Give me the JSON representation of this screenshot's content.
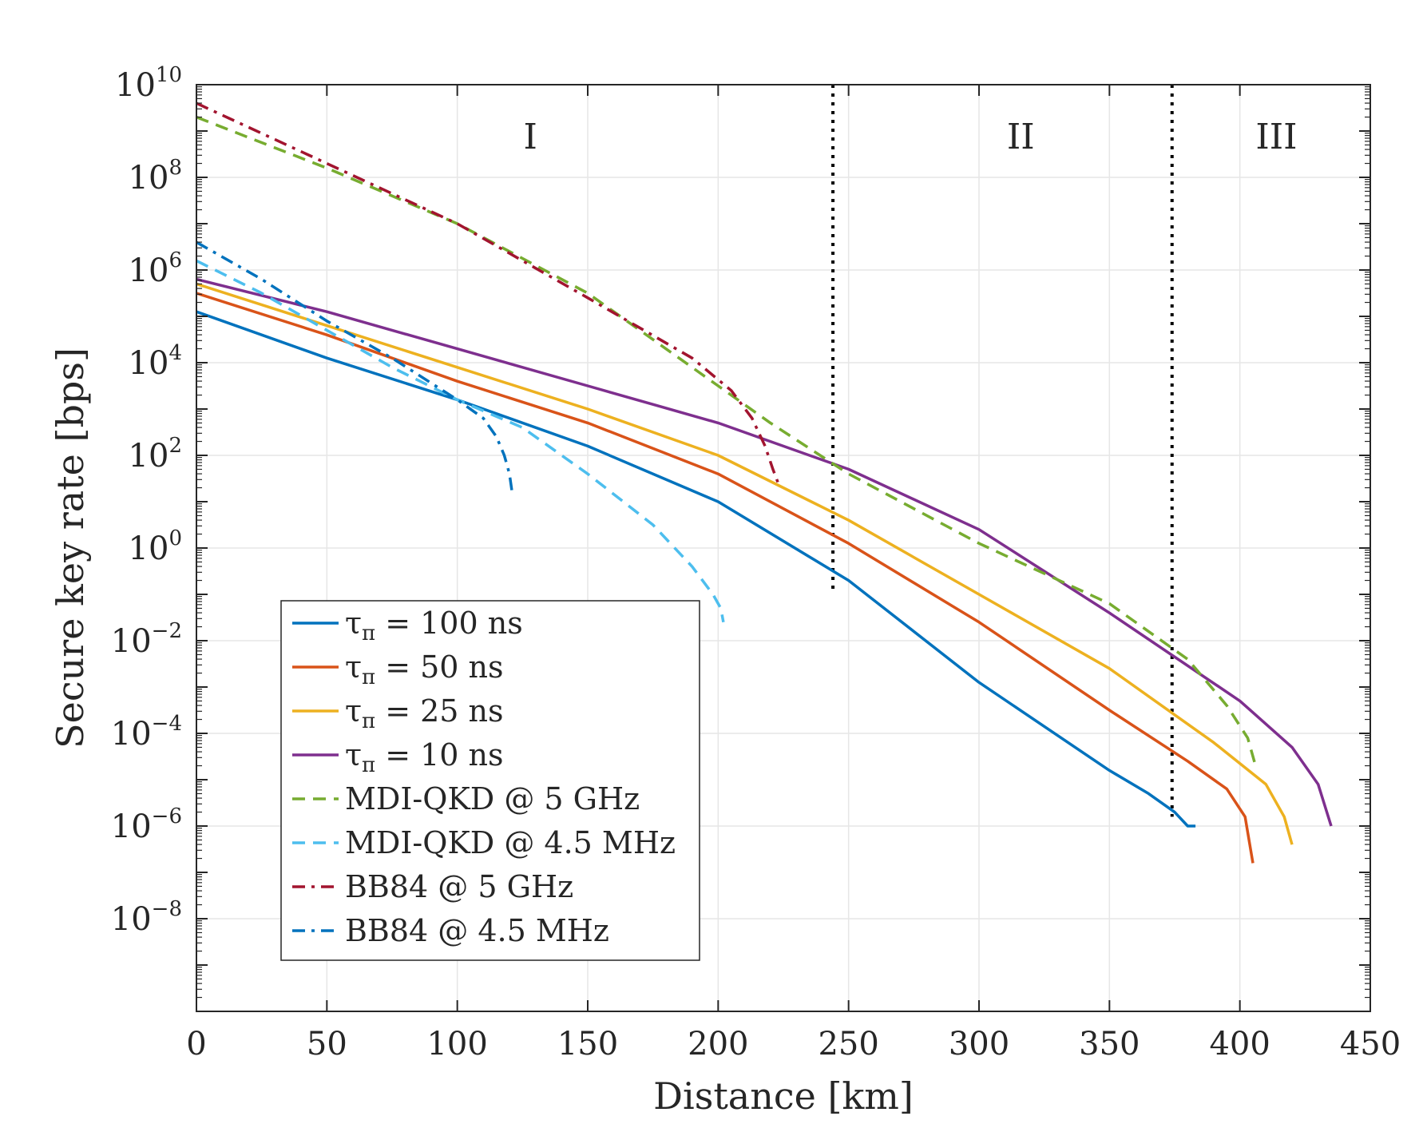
{
  "chart_data": {
    "type": "line",
    "yscale": "log",
    "xlabel": "Distance [km]",
    "ylabel": "Secure key rate [bps]",
    "xlim": [
      0,
      450
    ],
    "ylim_exponent": [
      -10,
      10
    ],
    "xticks": [
      0,
      50,
      100,
      150,
      200,
      250,
      300,
      350,
      400,
      450
    ],
    "yticks_exponent": [
      -8,
      -6,
      -4,
      -2,
      0,
      2,
      4,
      6,
      8,
      10
    ],
    "ytick_base": "10",
    "grid": true,
    "legend_position": "lower-left",
    "dividers_x_km": [
      244,
      374
    ],
    "regions": [
      {
        "label": "I",
        "x_center_km": 128
      },
      {
        "label": "II",
        "x_center_km": 316
      },
      {
        "label": "III",
        "x_center_km": 414
      }
    ],
    "series": [
      {
        "name": "τπ = 100 ns",
        "legend_main": "τ",
        "legend_sub": "π",
        "legend_rest": " = 100 ns",
        "color": "#0072BD",
        "style": "solid",
        "x": [
          0,
          50,
          100,
          150,
          200,
          250,
          300,
          350,
          365,
          375,
          380,
          383
        ],
        "log10": [
          5.1,
          4.1,
          3.2,
          2.2,
          1.0,
          -0.7,
          -2.9,
          -4.8,
          -5.3,
          -5.7,
          -6.0,
          -6.0
        ]
      },
      {
        "name": "τπ = 50 ns",
        "legend_main": "τ",
        "legend_sub": "π",
        "legend_rest": " = 50 ns",
        "color": "#D95319",
        "style": "solid",
        "x": [
          0,
          50,
          100,
          150,
          200,
          250,
          300,
          350,
          380,
          395,
          402,
          405
        ],
        "log10": [
          5.5,
          4.6,
          3.6,
          2.7,
          1.6,
          0.1,
          -1.6,
          -3.5,
          -4.6,
          -5.2,
          -5.8,
          -6.8
        ]
      },
      {
        "name": "τπ = 25 ns",
        "legend_main": "τ",
        "legend_sub": "π",
        "legend_rest": " = 25 ns",
        "color": "#EDB120",
        "style": "solid",
        "x": [
          0,
          50,
          100,
          150,
          200,
          250,
          300,
          350,
          390,
          410,
          417,
          420
        ],
        "log10": [
          5.7,
          4.8,
          3.9,
          3.0,
          2.0,
          0.6,
          -1.0,
          -2.6,
          -4.2,
          -5.1,
          -5.8,
          -6.4
        ]
      },
      {
        "name": "τπ = 10 ns",
        "legend_main": "τ",
        "legend_sub": "π",
        "legend_rest": " = 10 ns",
        "color": "#7E2F8E",
        "style": "solid",
        "x": [
          0,
          50,
          100,
          150,
          200,
          250,
          300,
          350,
          400,
          420,
          430,
          435
        ],
        "log10": [
          5.8,
          5.1,
          4.3,
          3.5,
          2.7,
          1.7,
          0.4,
          -1.4,
          -3.3,
          -4.3,
          -5.1,
          -6.0
        ]
      },
      {
        "name": "MDI-QKD @ 5 GHz",
        "legend_main": "MDI-QKD @ 5 GHz",
        "legend_sub": "",
        "legend_rest": "",
        "color": "#77AC30",
        "style": "dashed",
        "x": [
          0,
          50,
          100,
          150,
          200,
          220,
          250,
          300,
          350,
          380,
          395,
          403,
          406
        ],
        "log10": [
          9.3,
          8.2,
          7.0,
          5.5,
          3.5,
          2.7,
          1.6,
          0.1,
          -1.2,
          -2.4,
          -3.4,
          -4.1,
          -4.7
        ]
      },
      {
        "name": "MDI-QKD @ 4.5 MHz",
        "legend_main": "MDI-QKD @ 4.5 MHz",
        "legend_sub": "",
        "legend_rest": "",
        "color": "#4DBEEE",
        "style": "dashed",
        "x": [
          0,
          25,
          50,
          75,
          100,
          125,
          150,
          175,
          190,
          198,
          201,
          202
        ],
        "log10": [
          6.2,
          5.5,
          4.7,
          3.9,
          3.2,
          2.6,
          1.6,
          0.5,
          -0.4,
          -1.0,
          -1.3,
          -1.6
        ]
      },
      {
        "name": "BB84 @ 5 GHz",
        "legend_main": "BB84 @ 5 GHz",
        "legend_sub": "",
        "legend_rest": "",
        "color": "#A2142F",
        "style": "dashdot",
        "x": [
          0,
          50,
          100,
          150,
          190,
          205,
          213,
          218,
          221,
          223
        ],
        "log10": [
          9.6,
          8.3,
          7.0,
          5.4,
          4.1,
          3.4,
          2.8,
          2.2,
          1.7,
          1.4
        ]
      },
      {
        "name": "BB84 @ 4.5 MHz",
        "legend_main": "BB84 @ 4.5 MHz",
        "legend_sub": "",
        "legend_rest": "",
        "color": "#0072BD",
        "style": "dashdot",
        "x": [
          0,
          25,
          50,
          75,
          100,
          110,
          115,
          118,
          120,
          121
        ],
        "log10": [
          6.6,
          5.8,
          4.9,
          4.1,
          3.2,
          2.8,
          2.4,
          2.0,
          1.6,
          1.2
        ]
      }
    ]
  }
}
